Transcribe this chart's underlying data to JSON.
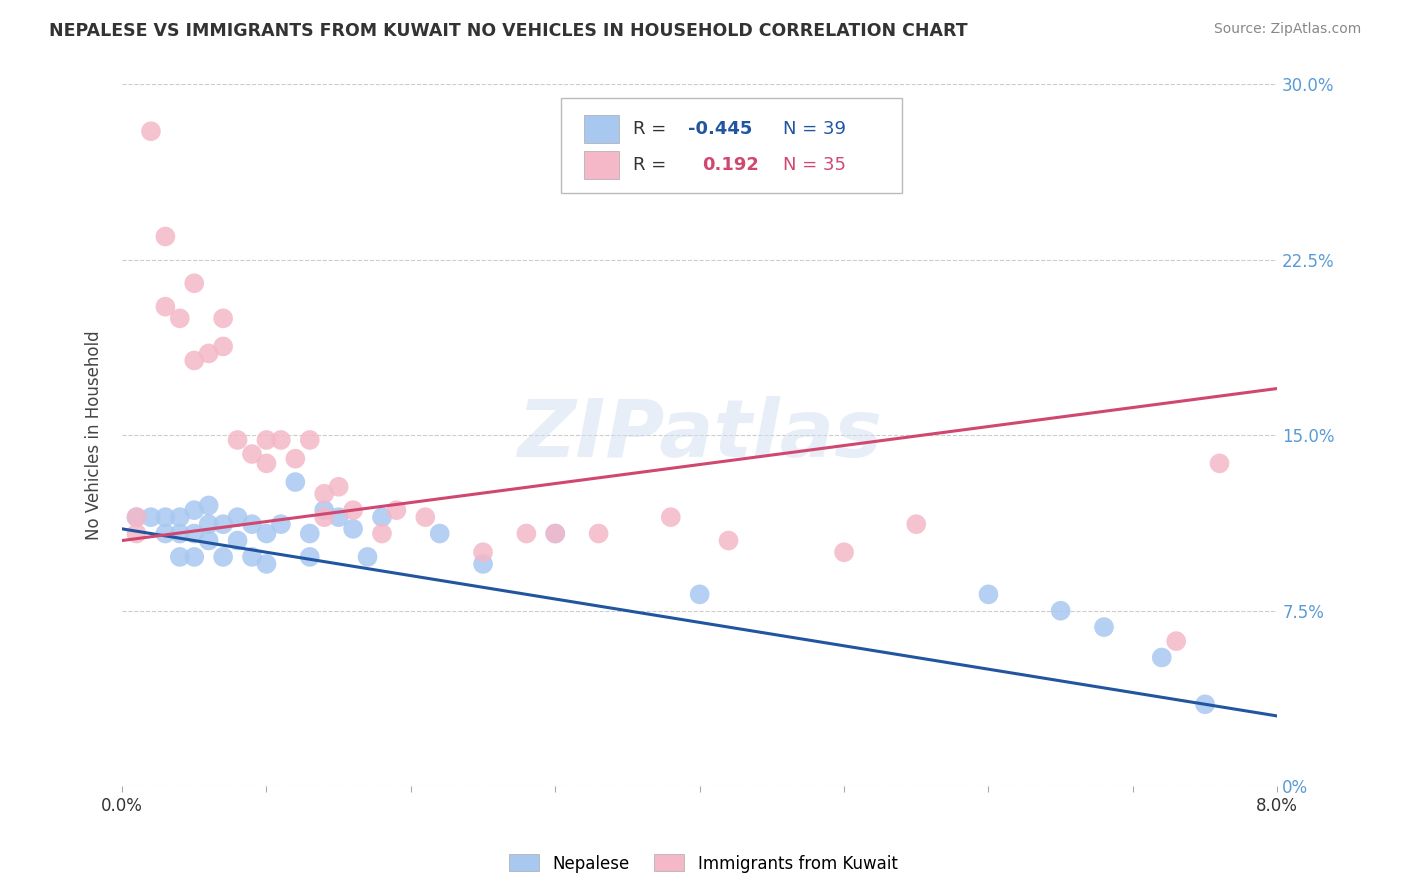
{
  "title": "NEPALESE VS IMMIGRANTS FROM KUWAIT NO VEHICLES IN HOUSEHOLD CORRELATION CHART",
  "source": "Source: ZipAtlas.com",
  "ylabel": "No Vehicles in Household",
  "legend_label1": "Nepalese",
  "legend_label2": "Immigrants from Kuwait",
  "r1": -0.445,
  "n1": 39,
  "r2": 0.192,
  "n2": 35,
  "color1": "#a8c8f0",
  "color2": "#f4b8c8",
  "line_color1": "#2255a0",
  "line_color2": "#d04870",
  "xlim": [
    0.0,
    0.08
  ],
  "ylim": [
    0.0,
    0.3
  ],
  "xtick_labels": [
    "0.0%",
    "",
    "",
    "",
    "",
    "",
    "",
    "",
    "8.0%"
  ],
  "ytick_labels_right": [
    "0%",
    "7.5%",
    "15.0%",
    "22.5%",
    "30.0%"
  ],
  "scatter1_x": [
    0.001,
    0.002,
    0.003,
    0.003,
    0.004,
    0.004,
    0.004,
    0.005,
    0.005,
    0.005,
    0.006,
    0.006,
    0.006,
    0.007,
    0.007,
    0.008,
    0.008,
    0.009,
    0.009,
    0.01,
    0.01,
    0.011,
    0.012,
    0.013,
    0.013,
    0.014,
    0.015,
    0.016,
    0.017,
    0.018,
    0.022,
    0.025,
    0.03,
    0.04,
    0.06,
    0.065,
    0.068,
    0.072,
    0.075
  ],
  "scatter1_y": [
    0.115,
    0.115,
    0.115,
    0.108,
    0.115,
    0.108,
    0.098,
    0.118,
    0.108,
    0.098,
    0.12,
    0.112,
    0.105,
    0.112,
    0.098,
    0.115,
    0.105,
    0.112,
    0.098,
    0.108,
    0.095,
    0.112,
    0.13,
    0.108,
    0.098,
    0.118,
    0.115,
    0.11,
    0.098,
    0.115,
    0.108,
    0.095,
    0.108,
    0.082,
    0.082,
    0.075,
    0.068,
    0.055,
    0.035
  ],
  "scatter2_x": [
    0.001,
    0.001,
    0.002,
    0.003,
    0.003,
    0.004,
    0.005,
    0.005,
    0.006,
    0.007,
    0.007,
    0.008,
    0.009,
    0.01,
    0.01,
    0.011,
    0.012,
    0.013,
    0.014,
    0.014,
    0.015,
    0.016,
    0.018,
    0.019,
    0.021,
    0.025,
    0.028,
    0.03,
    0.033,
    0.038,
    0.042,
    0.05,
    0.055,
    0.073,
    0.076
  ],
  "scatter2_y": [
    0.115,
    0.108,
    0.28,
    0.235,
    0.205,
    0.2,
    0.215,
    0.182,
    0.185,
    0.2,
    0.188,
    0.148,
    0.142,
    0.148,
    0.138,
    0.148,
    0.14,
    0.148,
    0.115,
    0.125,
    0.128,
    0.118,
    0.108,
    0.118,
    0.115,
    0.1,
    0.108,
    0.108,
    0.108,
    0.115,
    0.105,
    0.1,
    0.112,
    0.062,
    0.138
  ],
  "regline1_x": [
    0.0,
    0.08
  ],
  "regline1_y": [
    0.11,
    0.03
  ],
  "regline2_x": [
    0.0,
    0.08
  ],
  "regline2_y": [
    0.105,
    0.17
  ],
  "watermark": "ZIPatlas",
  "background_color": "#ffffff",
  "grid_color": "#cccccc"
}
